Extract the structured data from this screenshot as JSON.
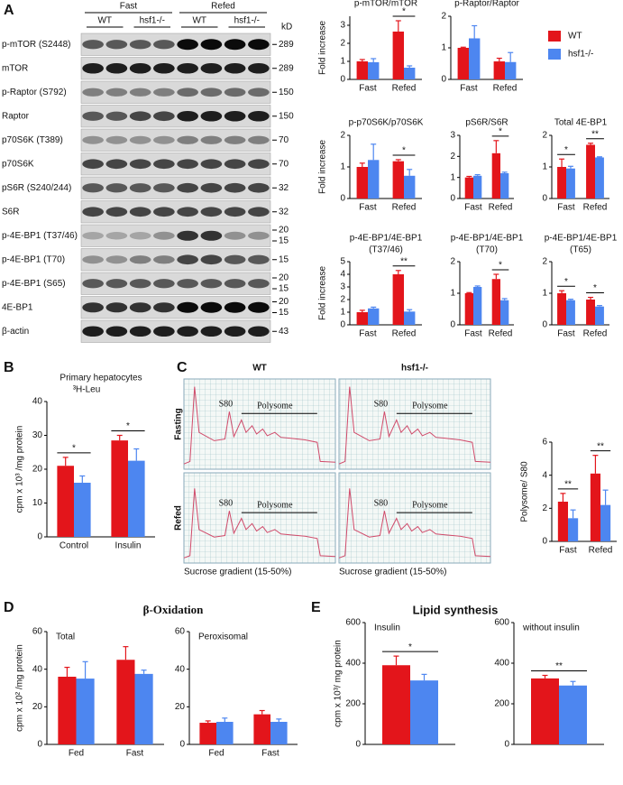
{
  "panel_labels": [
    "A",
    "B",
    "C",
    "D",
    "E"
  ],
  "group_titles": {
    "D": "β-Oxidation",
    "E": "Lipid synthesis"
  },
  "blot": {
    "conditions": [
      "Fast",
      "Refed"
    ],
    "genotypes": [
      "WT",
      "hsf1-/-",
      "WT",
      "hsf1-/-"
    ],
    "unit": "kD",
    "rows": [
      {
        "label": "p-mTOR (S2448)",
        "kd": [
          "289"
        ]
      },
      {
        "label": "mTOR",
        "kd": [
          "289"
        ]
      },
      {
        "label": "p-Raptor (S792)",
        "kd": [
          "150"
        ]
      },
      {
        "label": "Raptor",
        "kd": [
          "150"
        ]
      },
      {
        "label": "p70S6K (T389)",
        "kd": [
          "70"
        ]
      },
      {
        "label": "p70S6K",
        "kd": [
          "70"
        ]
      },
      {
        "label": "pS6R (S240/244)",
        "kd": [
          "32"
        ]
      },
      {
        "label": "S6R",
        "kd": [
          "32"
        ]
      },
      {
        "label": "p-4E-BP1 (T37/46)",
        "kd": [
          "20",
          "15"
        ]
      },
      {
        "label": "p-4E-BP1 (T70)",
        "kd": [
          "15"
        ]
      },
      {
        "label": "p-4E-BP1 (S65)",
        "kd": [
          "20",
          "15"
        ]
      },
      {
        "label": "4E-BP1",
        "kd": [
          "20",
          "15"
        ]
      },
      {
        "label": "β-actin",
        "kd": [
          "43"
        ]
      }
    ]
  },
  "polysome": {
    "genotypes": [
      "WT",
      "hsf1-/-"
    ],
    "conditions": [
      "Fasting",
      "Refed"
    ],
    "peak_label": "S80",
    "region_label": "Polysome",
    "x_axis_label": "Sucrose gradient (15-50%)"
  },
  "chart_data": [
    {
      "type": "bar",
      "title": "p-mTOR/mTOR",
      "ylabel": "Fold increase",
      "categories": [
        "Fast",
        "Refed"
      ],
      "ylim": [
        0,
        3.5
      ],
      "yticks": [
        0,
        1,
        2,
        3
      ],
      "series": [
        {
          "name": "WT",
          "color": "#e3151b",
          "values": [
            1.0,
            2.65
          ],
          "errors": [
            0.1,
            0.6
          ]
        },
        {
          "name": "hsf1-/-",
          "color": "#4d86f0",
          "values": [
            0.95,
            0.65
          ],
          "errors": [
            0.2,
            0.1
          ]
        }
      ],
      "significance": [
        null,
        "*"
      ],
      "legend": "right"
    },
    {
      "type": "bar",
      "title": "p-Raptor/Raptor",
      "categories": [
        "Fast",
        "Refed"
      ],
      "ylim": [
        0,
        2
      ],
      "yticks": [
        0,
        1,
        2
      ],
      "series": [
        {
          "color": "#e3151b",
          "values": [
            1.0,
            0.57
          ],
          "errors": [
            0.02,
            0.1
          ]
        },
        {
          "color": "#4d86f0",
          "values": [
            1.3,
            0.55
          ],
          "errors": [
            0.4,
            0.3
          ]
        }
      ]
    },
    {
      "type": "bar",
      "title": "p-p70S6K/p70S6K",
      "ylabel": "Fold increase",
      "categories": [
        "Fast",
        "Refed"
      ],
      "ylim": [
        0,
        2
      ],
      "yticks": [
        0,
        1,
        2
      ],
      "series": [
        {
          "color": "#e3151b",
          "values": [
            1.0,
            1.18
          ],
          "errors": [
            0.12,
            0.05
          ]
        },
        {
          "color": "#4d86f0",
          "values": [
            1.22,
            0.72
          ],
          "errors": [
            0.5,
            0.2
          ]
        }
      ],
      "significance": [
        null,
        "*"
      ]
    },
    {
      "type": "bar",
      "title": "pS6R/S6R",
      "categories": [
        "Fast",
        "Refed"
      ],
      "ylim": [
        0,
        3
      ],
      "yticks": [
        0,
        1,
        2,
        3
      ],
      "series": [
        {
          "color": "#e3151b",
          "values": [
            1.0,
            2.15
          ],
          "errors": [
            0.05,
            0.6
          ]
        },
        {
          "color": "#4d86f0",
          "values": [
            1.08,
            1.2
          ],
          "errors": [
            0.05,
            0.05
          ]
        }
      ],
      "significance": [
        null,
        "*"
      ]
    },
    {
      "type": "bar",
      "title": "Total 4E-BP1",
      "categories": [
        "Fast",
        "Refed"
      ],
      "ylim": [
        0,
        2
      ],
      "yticks": [
        0,
        1,
        2
      ],
      "series": [
        {
          "color": "#e3151b",
          "values": [
            1.0,
            1.7
          ],
          "errors": [
            0.25,
            0.05
          ]
        },
        {
          "color": "#4d86f0",
          "values": [
            0.95,
            1.3
          ],
          "errors": [
            0.07,
            0.02
          ]
        }
      ],
      "significance": [
        "*",
        "**"
      ]
    },
    {
      "type": "bar",
      "title": "p-4E-BP1/4E-BP1",
      "subtitle": "(T37/46)",
      "ylabel": "Fold increase",
      "categories": [
        "Fast",
        "Refed"
      ],
      "ylim": [
        0,
        5
      ],
      "yticks": [
        0,
        1,
        2,
        3,
        4,
        5
      ],
      "series": [
        {
          "color": "#e3151b",
          "values": [
            1.0,
            4.0
          ],
          "errors": [
            0.15,
            0.3
          ]
        },
        {
          "color": "#4d86f0",
          "values": [
            1.3,
            1.05
          ],
          "errors": [
            0.1,
            0.15
          ]
        }
      ],
      "significance": [
        null,
        "**"
      ]
    },
    {
      "type": "bar",
      "title": "p-4E-BP1/4E-BP1",
      "subtitle": "(T70)",
      "categories": [
        "Fast",
        "Refed"
      ],
      "ylim": [
        0,
        2
      ],
      "yticks": [
        0,
        1,
        2
      ],
      "series": [
        {
          "color": "#e3151b",
          "values": [
            1.0,
            1.45
          ],
          "errors": [
            0.02,
            0.15
          ]
        },
        {
          "color": "#4d86f0",
          "values": [
            1.2,
            0.78
          ],
          "errors": [
            0.03,
            0.05
          ]
        }
      ],
      "significance": [
        null,
        "*"
      ]
    },
    {
      "type": "bar",
      "title": "p-4E-BP1/4E-BP1",
      "subtitle": "(T65)",
      "categories": [
        "Fast",
        "Refed"
      ],
      "ylim": [
        0,
        2
      ],
      "yticks": [
        0,
        1,
        2
      ],
      "series": [
        {
          "color": "#e3151b",
          "values": [
            1.0,
            0.8
          ],
          "errors": [
            0.08,
            0.07
          ]
        },
        {
          "color": "#4d86f0",
          "values": [
            0.78,
            0.58
          ],
          "errors": [
            0.03,
            0.03
          ]
        }
      ],
      "significance": [
        "*",
        "*"
      ]
    },
    {
      "type": "bar",
      "title": "Primary hepatocytes",
      "subtitle": "³H-Leu",
      "ylabel": "cpm x 10³ /mg protein",
      "categories": [
        "Control",
        "Insulin"
      ],
      "ylim": [
        0,
        40
      ],
      "yticks": [
        0,
        10,
        20,
        30,
        40
      ],
      "series": [
        {
          "color": "#e3151b",
          "values": [
            21,
            28.5
          ],
          "errors": [
            2.5,
            1.5
          ]
        },
        {
          "color": "#4d86f0",
          "values": [
            16,
            22.5
          ],
          "errors": [
            2,
            3.5
          ]
        }
      ],
      "significance": [
        "*",
        "*"
      ]
    },
    {
      "type": "bar",
      "ylabel": "Polysome/ S80",
      "categories": [
        "Fast",
        "Refed"
      ],
      "ylim": [
        0,
        6
      ],
      "yticks": [
        0,
        2,
        4,
        6
      ],
      "series": [
        {
          "color": "#e3151b",
          "values": [
            2.4,
            4.1
          ],
          "errors": [
            0.5,
            1.1
          ]
        },
        {
          "color": "#4d86f0",
          "values": [
            1.4,
            2.2
          ],
          "errors": [
            0.5,
            0.9
          ]
        }
      ],
      "significance": [
        "**",
        "**"
      ]
    },
    {
      "type": "bar",
      "title": "Total",
      "ylabel": "cpm x 10² /mg protein",
      "categories": [
        "Fed",
        "Fast"
      ],
      "ylim": [
        0,
        60
      ],
      "yticks": [
        0,
        20,
        40,
        60
      ],
      "series": [
        {
          "color": "#e3151b",
          "values": [
            36,
            45
          ],
          "errors": [
            5,
            7
          ]
        },
        {
          "color": "#4d86f0",
          "values": [
            35,
            37.5
          ],
          "errors": [
            9,
            2
          ]
        }
      ]
    },
    {
      "type": "bar",
      "title": "Peroxisomal",
      "categories": [
        "Fed",
        "Fast"
      ],
      "ylim": [
        0,
        60
      ],
      "yticks": [
        0,
        20,
        40,
        60
      ],
      "series": [
        {
          "color": "#e3151b",
          "values": [
            11.5,
            16
          ],
          "errors": [
            1,
            2
          ]
        },
        {
          "color": "#4d86f0",
          "values": [
            12,
            12
          ],
          "errors": [
            2,
            1.5
          ]
        }
      ]
    },
    {
      "type": "bar",
      "title": "Insulin",
      "ylabel": "cpm x 10³/ mg protein",
      "categories": [
        null
      ],
      "ylim": [
        0,
        600
      ],
      "yticks": [
        0,
        200,
        400,
        600
      ],
      "series": [
        {
          "color": "#e3151b",
          "values": [
            390
          ],
          "errors": [
            45
          ]
        },
        {
          "color": "#4d86f0",
          "values": [
            315
          ],
          "errors": [
            30
          ]
        }
      ],
      "significance": [
        "*"
      ]
    },
    {
      "type": "bar",
      "title": "without insulin",
      "categories": [
        null
      ],
      "ylim": [
        0,
        600
      ],
      "yticks": [
        0,
        200,
        400,
        600
      ],
      "series": [
        {
          "color": "#e3151b",
          "values": [
            325
          ],
          "errors": [
            15
          ]
        },
        {
          "color": "#4d86f0",
          "values": [
            290
          ],
          "errors": [
            20
          ]
        }
      ],
      "significance": [
        "**"
      ]
    }
  ]
}
